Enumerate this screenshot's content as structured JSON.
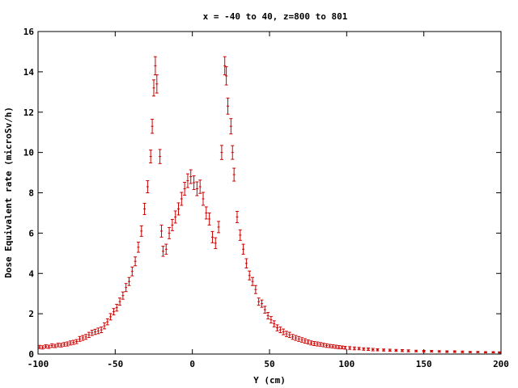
{
  "chart_data": {
    "type": "scatter",
    "title": "x = -40 to 40, z=800 to 801",
    "xlabel": "Y (cm)",
    "ylabel": "Dose Equivalent rate (microSv/h)",
    "xlim": [
      -100,
      200
    ],
    "ylim": [
      0,
      16
    ],
    "x_ticks": [
      -100,
      -50,
      0,
      50,
      100,
      150,
      200
    ],
    "y_ticks": [
      0,
      2,
      4,
      6,
      8,
      10,
      12,
      14,
      16
    ],
    "grid": false,
    "legend": "none",
    "marker": "errorbar",
    "color": "#cc0000",
    "points": [
      {
        "x": -99,
        "y": 0.35,
        "e": 0.08
      },
      {
        "x": -97,
        "y": 0.33,
        "e": 0.08
      },
      {
        "x": -95,
        "y": 0.38,
        "e": 0.08
      },
      {
        "x": -93,
        "y": 0.36,
        "e": 0.08
      },
      {
        "x": -91,
        "y": 0.42,
        "e": 0.09
      },
      {
        "x": -89,
        "y": 0.4,
        "e": 0.08
      },
      {
        "x": -87,
        "y": 0.45,
        "e": 0.09
      },
      {
        "x": -85,
        "y": 0.44,
        "e": 0.09
      },
      {
        "x": -83,
        "y": 0.48,
        "e": 0.09
      },
      {
        "x": -81,
        "y": 0.5,
        "e": 0.1
      },
      {
        "x": -79,
        "y": 0.55,
        "e": 0.1
      },
      {
        "x": -77,
        "y": 0.58,
        "e": 0.1
      },
      {
        "x": -75,
        "y": 0.62,
        "e": 0.1
      },
      {
        "x": -73,
        "y": 0.75,
        "e": 0.12
      },
      {
        "x": -71,
        "y": 0.8,
        "e": 0.12
      },
      {
        "x": -69,
        "y": 0.85,
        "e": 0.12
      },
      {
        "x": -67,
        "y": 0.95,
        "e": 0.13
      },
      {
        "x": -65,
        "y": 1.05,
        "e": 0.13
      },
      {
        "x": -63,
        "y": 1.1,
        "e": 0.13
      },
      {
        "x": -61,
        "y": 1.15,
        "e": 0.14
      },
      {
        "x": -59,
        "y": 1.2,
        "e": 0.14
      },
      {
        "x": -57,
        "y": 1.4,
        "e": 0.15
      },
      {
        "x": -55,
        "y": 1.6,
        "e": 0.15
      },
      {
        "x": -53,
        "y": 1.85,
        "e": 0.16
      },
      {
        "x": -51,
        "y": 2.1,
        "e": 0.16
      },
      {
        "x": -49,
        "y": 2.3,
        "e": 0.17
      },
      {
        "x": -47,
        "y": 2.6,
        "e": 0.18
      },
      {
        "x": -45,
        "y": 2.9,
        "e": 0.18
      },
      {
        "x": -43,
        "y": 3.3,
        "e": 0.2
      },
      {
        "x": -41,
        "y": 3.6,
        "e": 0.2
      },
      {
        "x": -39,
        "y": 4.1,
        "e": 0.22
      },
      {
        "x": -37,
        "y": 4.6,
        "e": 0.22
      },
      {
        "x": -35,
        "y": 5.3,
        "e": 0.25
      },
      {
        "x": -33,
        "y": 6.1,
        "e": 0.26
      },
      {
        "x": -31,
        "y": 7.2,
        "e": 0.28
      },
      {
        "x": -29,
        "y": 8.3,
        "e": 0.3
      },
      {
        "x": -27,
        "y": 9.8,
        "e": 0.32
      },
      {
        "x": -26,
        "y": 11.3,
        "e": 0.35
      },
      {
        "x": -25,
        "y": 13.2,
        "e": 0.4
      },
      {
        "x": -24,
        "y": 14.3,
        "e": 0.45
      },
      {
        "x": -23,
        "y": 13.4,
        "e": 0.45
      },
      {
        "x": -21,
        "y": 9.8,
        "e": 0.35
      },
      {
        "x": -20,
        "y": 6.1,
        "e": 0.3
      },
      {
        "x": -19,
        "y": 5.1,
        "e": 0.25
      },
      {
        "x": -17,
        "y": 5.2,
        "e": 0.25
      },
      {
        "x": -15,
        "y": 6.0,
        "e": 0.28
      },
      {
        "x": -13,
        "y": 6.4,
        "e": 0.28
      },
      {
        "x": -11,
        "y": 6.8,
        "e": 0.3
      },
      {
        "x": -9,
        "y": 7.2,
        "e": 0.3
      },
      {
        "x": -7,
        "y": 7.7,
        "e": 0.32
      },
      {
        "x": -5,
        "y": 8.2,
        "e": 0.32
      },
      {
        "x": -3,
        "y": 8.6,
        "e": 0.34
      },
      {
        "x": -1,
        "y": 8.8,
        "e": 0.34
      },
      {
        "x": 1,
        "y": 8.5,
        "e": 0.34
      },
      {
        "x": 3,
        "y": 8.2,
        "e": 0.34
      },
      {
        "x": 5,
        "y": 8.3,
        "e": 0.33
      },
      {
        "x": 7,
        "y": 7.7,
        "e": 0.32
      },
      {
        "x": 9,
        "y": 7.0,
        "e": 0.3
      },
      {
        "x": 11,
        "y": 6.7,
        "e": 0.3
      },
      {
        "x": 13,
        "y": 5.8,
        "e": 0.28
      },
      {
        "x": 15,
        "y": 5.5,
        "e": 0.27
      },
      {
        "x": 17,
        "y": 6.3,
        "e": 0.28
      },
      {
        "x": 19,
        "y": 10.0,
        "e": 0.35
      },
      {
        "x": 21,
        "y": 14.3,
        "e": 0.45
      },
      {
        "x": 22,
        "y": 13.8,
        "e": 0.45
      },
      {
        "x": 23,
        "y": 12.3,
        "e": 0.4
      },
      {
        "x": 25,
        "y": 11.3,
        "e": 0.38
      },
      {
        "x": 26,
        "y": 10.0,
        "e": 0.34
      },
      {
        "x": 27,
        "y": 8.9,
        "e": 0.32
      },
      {
        "x": 29,
        "y": 6.8,
        "e": 0.28
      },
      {
        "x": 31,
        "y": 5.9,
        "e": 0.26
      },
      {
        "x": 33,
        "y": 5.2,
        "e": 0.25
      },
      {
        "x": 35,
        "y": 4.5,
        "e": 0.23
      },
      {
        "x": 37,
        "y": 3.9,
        "e": 0.22
      },
      {
        "x": 39,
        "y": 3.6,
        "e": 0.2
      },
      {
        "x": 41,
        "y": 3.2,
        "e": 0.2
      },
      {
        "x": 43,
        "y": 2.6,
        "e": 0.18
      },
      {
        "x": 45,
        "y": 2.5,
        "e": 0.18
      },
      {
        "x": 47,
        "y": 2.2,
        "e": 0.17
      },
      {
        "x": 49,
        "y": 1.9,
        "e": 0.16
      },
      {
        "x": 51,
        "y": 1.7,
        "e": 0.16
      },
      {
        "x": 53,
        "y": 1.5,
        "e": 0.15
      },
      {
        "x": 55,
        "y": 1.3,
        "e": 0.15
      },
      {
        "x": 57,
        "y": 1.2,
        "e": 0.14
      },
      {
        "x": 59,
        "y": 1.1,
        "e": 0.14
      },
      {
        "x": 61,
        "y": 1.0,
        "e": 0.13
      },
      {
        "x": 63,
        "y": 0.95,
        "e": 0.13
      },
      {
        "x": 65,
        "y": 0.85,
        "e": 0.12
      },
      {
        "x": 67,
        "y": 0.8,
        "e": 0.12
      },
      {
        "x": 69,
        "y": 0.75,
        "e": 0.12
      },
      {
        "x": 71,
        "y": 0.7,
        "e": 0.11
      },
      {
        "x": 73,
        "y": 0.65,
        "e": 0.11
      },
      {
        "x": 75,
        "y": 0.6,
        "e": 0.1
      },
      {
        "x": 77,
        "y": 0.55,
        "e": 0.1
      },
      {
        "x": 79,
        "y": 0.52,
        "e": 0.1
      },
      {
        "x": 81,
        "y": 0.5,
        "e": 0.1
      },
      {
        "x": 83,
        "y": 0.48,
        "e": 0.09
      },
      {
        "x": 85,
        "y": 0.45,
        "e": 0.09
      },
      {
        "x": 87,
        "y": 0.42,
        "e": 0.09
      },
      {
        "x": 89,
        "y": 0.4,
        "e": 0.08
      },
      {
        "x": 91,
        "y": 0.38,
        "e": 0.08
      },
      {
        "x": 93,
        "y": 0.36,
        "e": 0.08
      },
      {
        "x": 95,
        "y": 0.34,
        "e": 0.08
      },
      {
        "x": 97,
        "y": 0.33,
        "e": 0.07
      },
      {
        "x": 99,
        "y": 0.31,
        "e": 0.07
      },
      {
        "x": 102,
        "y": 0.3,
        "e": 0.07
      },
      {
        "x": 105,
        "y": 0.28,
        "e": 0.07
      },
      {
        "x": 108,
        "y": 0.27,
        "e": 0.06
      },
      {
        "x": 111,
        "y": 0.25,
        "e": 0.06
      },
      {
        "x": 114,
        "y": 0.24,
        "e": 0.06
      },
      {
        "x": 117,
        "y": 0.22,
        "e": 0.06
      },
      {
        "x": 120,
        "y": 0.21,
        "e": 0.05
      },
      {
        "x": 124,
        "y": 0.2,
        "e": 0.05
      },
      {
        "x": 128,
        "y": 0.19,
        "e": 0.05
      },
      {
        "x": 132,
        "y": 0.18,
        "e": 0.05
      },
      {
        "x": 136,
        "y": 0.17,
        "e": 0.05
      },
      {
        "x": 140,
        "y": 0.16,
        "e": 0.05
      },
      {
        "x": 145,
        "y": 0.15,
        "e": 0.04
      },
      {
        "x": 150,
        "y": 0.14,
        "e": 0.04
      },
      {
        "x": 155,
        "y": 0.14,
        "e": 0.04
      },
      {
        "x": 160,
        "y": 0.13,
        "e": 0.04
      },
      {
        "x": 165,
        "y": 0.12,
        "e": 0.04
      },
      {
        "x": 170,
        "y": 0.12,
        "e": 0.04
      },
      {
        "x": 175,
        "y": 0.11,
        "e": 0.04
      },
      {
        "x": 180,
        "y": 0.1,
        "e": 0.03
      },
      {
        "x": 185,
        "y": 0.1,
        "e": 0.03
      },
      {
        "x": 190,
        "y": 0.09,
        "e": 0.03
      },
      {
        "x": 195,
        "y": 0.09,
        "e": 0.03
      },
      {
        "x": 199,
        "y": 0.08,
        "e": 0.03
      }
    ]
  }
}
